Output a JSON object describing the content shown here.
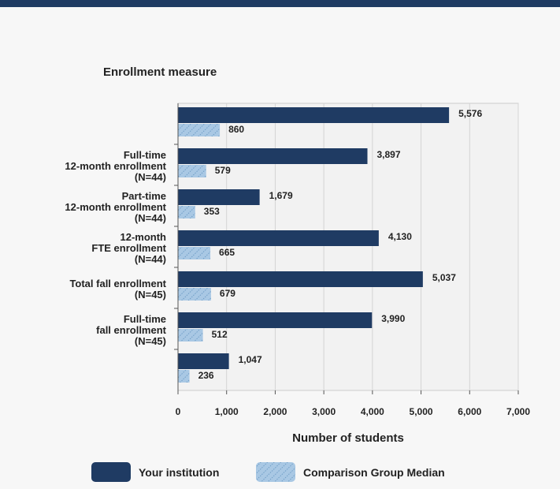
{
  "chart_data": {
    "type": "bar",
    "orientation": "horizontal",
    "ytitle": "Enrollment measure",
    "xlabel": "Number of students",
    "categories": [
      "",
      "Full-time\n12-month enrollment\n(N=44)",
      "Part-time\n12-month enrollment\n(N=44)",
      "12-month\nFTE enrollment\n(N=44)",
      "Total fall enrollment\n(N=45)",
      "Full-time\nfall enrollment\n(N=45)",
      ""
    ],
    "series": [
      {
        "name": "Your institution",
        "color": "#1f3b63",
        "values": [
          5576,
          3897,
          1679,
          4130,
          5037,
          3990,
          1047
        ],
        "labels": [
          "5,576",
          "3,897",
          "1,679",
          "4,130",
          "5,037",
          "3,990",
          "1,047"
        ]
      },
      {
        "name": "Comparison Group Median",
        "color": "#8fb6d9",
        "pattern": "hatched",
        "values": [
          860,
          579,
          353,
          665,
          679,
          512,
          236
        ],
        "labels": [
          "860",
          "579",
          "353",
          "665",
          "679",
          "512",
          "236"
        ]
      }
    ],
    "xlim": [
      0,
      7000
    ],
    "xticks": [
      0,
      1000,
      2000,
      3000,
      4000,
      5000,
      6000,
      7000
    ],
    "xtick_labels": [
      "0",
      "1,000",
      "2,000",
      "3,000",
      "4,000",
      "5,000",
      "6,000",
      "7,000"
    ],
    "grid": true,
    "legend": "bottom"
  }
}
